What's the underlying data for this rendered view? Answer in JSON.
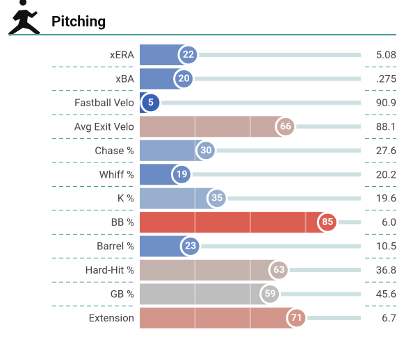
{
  "chart_data": {
    "type": "percentile-bar",
    "title": "Pitching",
    "categories": [
      "xERA",
      "xBA",
      "Fastball Velo",
      "Avg Exit Velo",
      "Chase %",
      "Whiff %",
      "K %",
      "BB %",
      "Barrel %",
      "Hard-Hit %",
      "GB %",
      "Extension"
    ],
    "values": [
      22,
      20,
      5,
      66,
      30,
      19,
      35,
      85,
      23,
      63,
      59,
      71
    ],
    "stats": [
      "5.08",
      ".275",
      "90.9",
      "88.1",
      "27.6",
      "20.2",
      "19.6",
      "6.0",
      "10.5",
      "36.8",
      "45.6",
      "6.7"
    ],
    "colors": [
      "#6e8ec5",
      "#6a8bc3",
      "#3a62b4",
      "#c9a9a1",
      "#8ca6cd",
      "#6b8bc4",
      "#98b0cd",
      "#dc5e50",
      "#6f90c6",
      "#c5b3ae",
      "#bebebe",
      "#d3968b"
    ],
    "xlim": [
      0,
      100
    ],
    "xticks": [
      25,
      50,
      75
    ]
  }
}
